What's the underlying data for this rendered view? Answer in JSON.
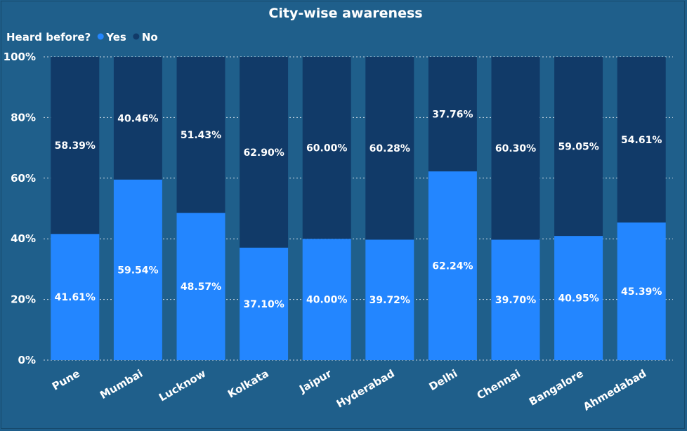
{
  "chart_data": {
    "type": "bar",
    "stacked": true,
    "title": "City-wise awareness",
    "legend": {
      "title": "Heard before?",
      "placement": "top-left",
      "entries": [
        "Yes",
        "No"
      ]
    },
    "categories": [
      "Pune",
      "Mumbai",
      "Lucknow",
      "Kolkata",
      "Jaipur",
      "Hyderabad",
      "Delhi",
      "Chennai",
      "Bangalore",
      "Ahmedabad"
    ],
    "series": [
      {
        "name": "Yes",
        "color": "#2386ff",
        "values": [
          41.61,
          59.54,
          48.57,
          37.1,
          40.0,
          39.72,
          62.24,
          39.7,
          40.95,
          45.39
        ],
        "labels": [
          "41.61%",
          "59.54%",
          "48.57%",
          "37.10%",
          "40.00%",
          "39.72%",
          "62.24%",
          "39.70%",
          "40.95%",
          "45.39%"
        ]
      },
      {
        "name": "No",
        "color": "#113a68",
        "values": [
          58.39,
          40.46,
          51.43,
          62.9,
          60.0,
          60.28,
          37.76,
          60.3,
          59.05,
          54.61
        ],
        "labels": [
          "58.39%",
          "40.46%",
          "51.43%",
          "62.90%",
          "60.00%",
          "60.28%",
          "37.76%",
          "60.30%",
          "59.05%",
          "54.61%"
        ]
      }
    ],
    "ylim": [
      0,
      100
    ],
    "yticks": [
      "0%",
      "20%",
      "40%",
      "60%",
      "80%",
      "100%"
    ],
    "xlabel": "",
    "ylabel": "",
    "grid": true
  }
}
